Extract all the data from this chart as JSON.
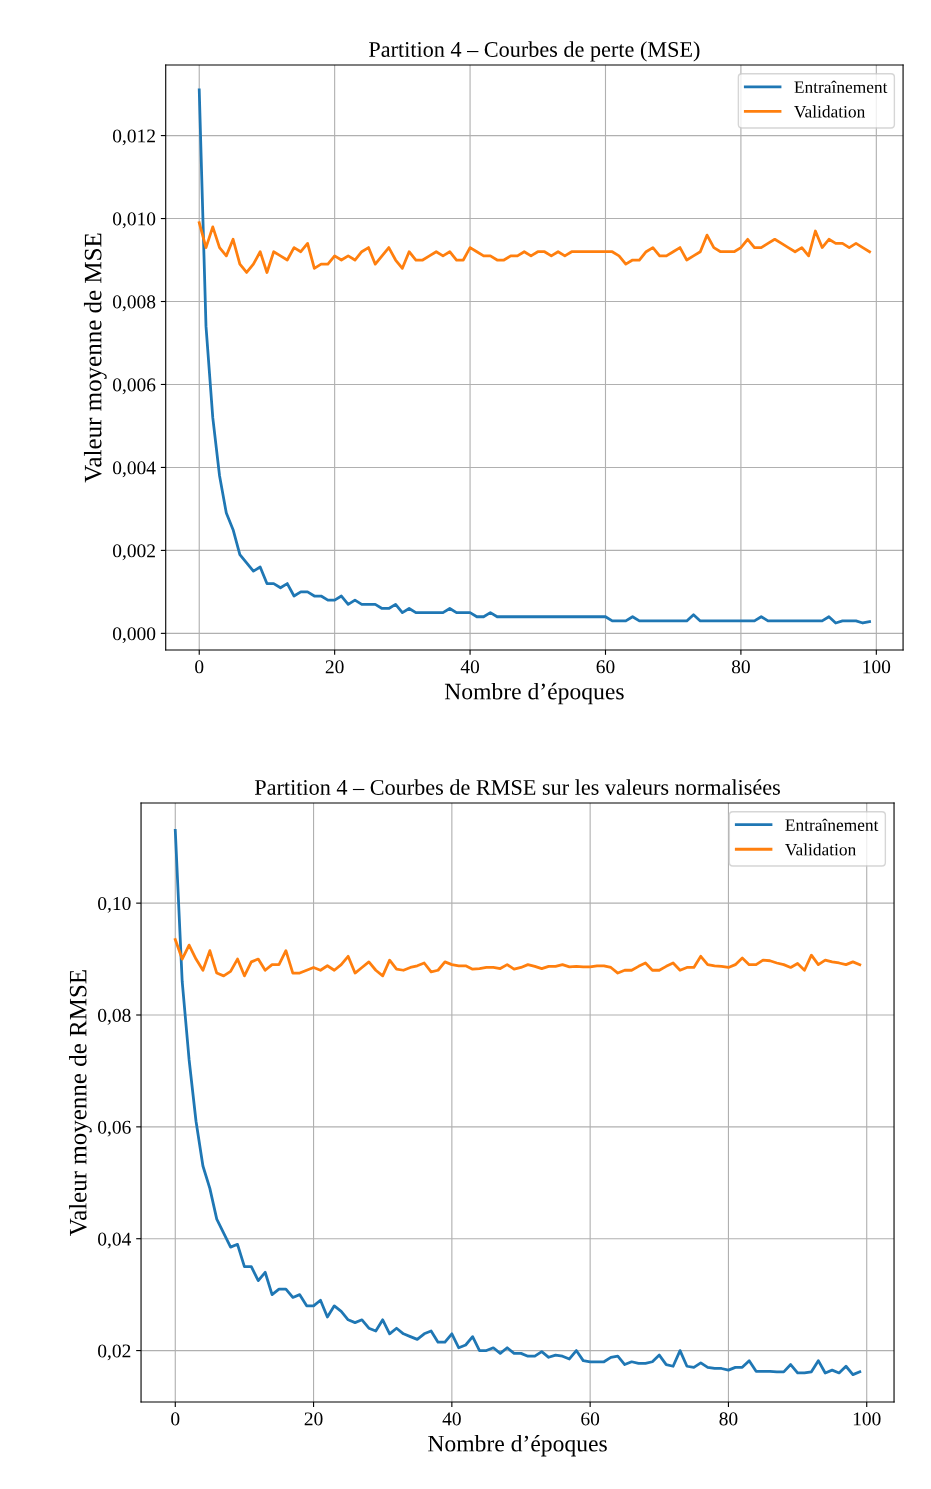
{
  "chart_data": [
    {
      "type": "line",
      "title": "Partition 4 – Courbes de perte (MSE)",
      "xlabel": "Nombre d’époques",
      "ylabel": "Valeur moyenne de MSE",
      "x": [
        0,
        1,
        2,
        3,
        4,
        5,
        6,
        7,
        8,
        9,
        10,
        11,
        12,
        13,
        14,
        15,
        16,
        17,
        18,
        19,
        20,
        21,
        22,
        23,
        24,
        25,
        26,
        27,
        28,
        29,
        30,
        31,
        32,
        33,
        34,
        35,
        36,
        37,
        38,
        39,
        40,
        41,
        42,
        43,
        44,
        45,
        46,
        47,
        48,
        49,
        50,
        51,
        52,
        53,
        54,
        55,
        56,
        57,
        58,
        59,
        60,
        61,
        62,
        63,
        64,
        65,
        66,
        67,
        68,
        69,
        70,
        71,
        72,
        73,
        74,
        75,
        76,
        77,
        78,
        79,
        80,
        81,
        82,
        83,
        84,
        85,
        86,
        87,
        88,
        89,
        90,
        91,
        92,
        93,
        94,
        95,
        96,
        97,
        98,
        99
      ],
      "series": [
        {
          "name": "Entraînement",
          "color": "#1f77b4",
          "values": [
            0.0131,
            0.0074,
            0.0052,
            0.0038,
            0.0029,
            0.0025,
            0.0019,
            0.0017,
            0.0015,
            0.0016,
            0.0012,
            0.0012,
            0.0011,
            0.0012,
            0.0009,
            0.001,
            0.001,
            0.0009,
            0.0009,
            0.0008,
            0.0008,
            0.0009,
            0.0007,
            0.0008,
            0.0007,
            0.0007,
            0.0007,
            0.0006,
            0.0006,
            0.0007,
            0.0005,
            0.0006,
            0.0005,
            0.0005,
            0.0005,
            0.0005,
            0.0005,
            0.0006,
            0.0005,
            0.0005,
            0.0005,
            0.0004,
            0.0004,
            0.0005,
            0.0004,
            0.0004,
            0.0004,
            0.0004,
            0.0004,
            0.0004,
            0.0004,
            0.0004,
            0.0004,
            0.0004,
            0.0004,
            0.0004,
            0.0004,
            0.0004,
            0.0004,
            0.0004,
            0.0004,
            0.0003,
            0.0003,
            0.0003,
            0.0004,
            0.0003,
            0.0003,
            0.0003,
            0.0003,
            0.0003,
            0.0003,
            0.0003,
            0.0003,
            0.00045,
            0.0003,
            0.0003,
            0.0003,
            0.0003,
            0.0003,
            0.0003,
            0.0003,
            0.0003,
            0.0003,
            0.0004,
            0.0003,
            0.0003,
            0.0003,
            0.0003,
            0.0003,
            0.0003,
            0.0003,
            0.0003,
            0.0003,
            0.0004,
            0.00025,
            0.0003,
            0.0003,
            0.0003,
            0.00025,
            0.00028
          ]
        },
        {
          "name": "Validation",
          "color": "#ff7f0e",
          "values": [
            0.0099,
            0.0093,
            0.0098,
            0.0093,
            0.0091,
            0.0095,
            0.0089,
            0.0087,
            0.0089,
            0.0092,
            0.0087,
            0.0092,
            0.0091,
            0.009,
            0.0093,
            0.0092,
            0.0094,
            0.0088,
            0.0089,
            0.0089,
            0.0091,
            0.009,
            0.0091,
            0.009,
            0.0092,
            0.0093,
            0.0089,
            0.0091,
            0.0093,
            0.009,
            0.0088,
            0.0092,
            0.009,
            0.009,
            0.0091,
            0.0092,
            0.0091,
            0.0092,
            0.009,
            0.009,
            0.0093,
            0.0092,
            0.0091,
            0.0091,
            0.009,
            0.009,
            0.0091,
            0.0091,
            0.0092,
            0.0091,
            0.0092,
            0.0092,
            0.0091,
            0.0092,
            0.0091,
            0.0092,
            0.0092,
            0.0092,
            0.0092,
            0.0092,
            0.0092,
            0.0092,
            0.0091,
            0.0089,
            0.009,
            0.009,
            0.0092,
            0.0093,
            0.0091,
            0.0091,
            0.0092,
            0.0093,
            0.009,
            0.0091,
            0.0092,
            0.0096,
            0.0093,
            0.0092,
            0.0092,
            0.0092,
            0.0093,
            0.0095,
            0.0093,
            0.0093,
            0.0094,
            0.0095,
            0.0094,
            0.0093,
            0.0092,
            0.0093,
            0.0091,
            0.0097,
            0.0093,
            0.0095,
            0.0094,
            0.0094,
            0.0093,
            0.0094,
            0.0093,
            0.0092
          ]
        }
      ],
      "xlim": [
        -4.95,
        103.95
      ],
      "xticks": [
        0,
        20,
        40,
        60,
        80,
        100
      ],
      "ylim": [
        -0.0004,
        0.0137
      ],
      "yticks": [
        {
          "value": 0,
          "label": "0,000"
        },
        {
          "value": 0.002,
          "label": "0,002"
        },
        {
          "value": 0.004,
          "label": "0,004"
        },
        {
          "value": 0.006,
          "label": "0,006"
        },
        {
          "value": 0.008,
          "label": "0,008"
        },
        {
          "value": 0.01,
          "label": "0,010"
        },
        {
          "value": 0.012,
          "label": "0,012"
        }
      ],
      "grid": true,
      "legend": "top right",
      "line_style": "solid"
    },
    {
      "type": "line",
      "title": "Partition 4 – Courbes de RMSE sur les valeurs normalisées",
      "xlabel": "Nombre d’époques",
      "ylabel": "Valeur moyenne de RMSE",
      "x": [
        0,
        1,
        2,
        3,
        4,
        5,
        6,
        7,
        8,
        9,
        10,
        11,
        12,
        13,
        14,
        15,
        16,
        17,
        18,
        19,
        20,
        21,
        22,
        23,
        24,
        25,
        26,
        27,
        28,
        29,
        30,
        31,
        32,
        33,
        34,
        35,
        36,
        37,
        38,
        39,
        40,
        41,
        42,
        43,
        44,
        45,
        46,
        47,
        48,
        49,
        50,
        51,
        52,
        53,
        54,
        55,
        56,
        57,
        58,
        59,
        60,
        61,
        62,
        63,
        64,
        65,
        66,
        67,
        68,
        69,
        70,
        71,
        72,
        73,
        74,
        75,
        76,
        77,
        78,
        79,
        80,
        81,
        82,
        83,
        84,
        85,
        86,
        87,
        88,
        89,
        90,
        91,
        92,
        93,
        94,
        95,
        96,
        97,
        98,
        99
      ],
      "series": [
        {
          "name": "Entraînement",
          "color": "#1f77b4",
          "values": [
            0.113,
            0.086,
            0.072,
            0.061,
            0.053,
            0.049,
            0.0435,
            0.041,
            0.0385,
            0.039,
            0.035,
            0.035,
            0.0325,
            0.034,
            0.03,
            0.031,
            0.031,
            0.0295,
            0.03,
            0.028,
            0.028,
            0.029,
            0.026,
            0.028,
            0.027,
            0.0255,
            0.025,
            0.0255,
            0.024,
            0.0235,
            0.0255,
            0.023,
            0.024,
            0.023,
            0.0225,
            0.022,
            0.023,
            0.0235,
            0.0215,
            0.0215,
            0.023,
            0.0205,
            0.021,
            0.0225,
            0.02,
            0.02,
            0.0205,
            0.0195,
            0.0205,
            0.0195,
            0.0195,
            0.019,
            0.019,
            0.0198,
            0.0188,
            0.0192,
            0.019,
            0.0185,
            0.02,
            0.0182,
            0.018,
            0.018,
            0.018,
            0.0188,
            0.019,
            0.0175,
            0.018,
            0.0177,
            0.0177,
            0.018,
            0.0192,
            0.0175,
            0.0172,
            0.02,
            0.0172,
            0.017,
            0.0178,
            0.017,
            0.0168,
            0.0168,
            0.0165,
            0.017,
            0.017,
            0.0182,
            0.0163,
            0.0163,
            0.0163,
            0.0162,
            0.0162,
            0.0175,
            0.016,
            0.016,
            0.0162,
            0.0182,
            0.016,
            0.0165,
            0.016,
            0.0172,
            0.0157,
            0.0162
          ]
        },
        {
          "name": "Validation",
          "color": "#ff7f0e",
          "values": [
            0.0935,
            0.09,
            0.0925,
            0.09,
            0.088,
            0.0915,
            0.0875,
            0.087,
            0.0878,
            0.09,
            0.087,
            0.0895,
            0.09,
            0.088,
            0.089,
            0.089,
            0.0915,
            0.0875,
            0.0875,
            0.088,
            0.0885,
            0.088,
            0.0888,
            0.088,
            0.089,
            0.0905,
            0.0875,
            0.0885,
            0.0895,
            0.088,
            0.087,
            0.0898,
            0.0882,
            0.088,
            0.0885,
            0.0888,
            0.0893,
            0.0877,
            0.088,
            0.0895,
            0.089,
            0.0888,
            0.0888,
            0.0882,
            0.0883,
            0.0885,
            0.0885,
            0.0883,
            0.089,
            0.0882,
            0.0885,
            0.089,
            0.0887,
            0.0883,
            0.0887,
            0.0887,
            0.089,
            0.0886,
            0.0887,
            0.0886,
            0.0886,
            0.0888,
            0.0888,
            0.0885,
            0.0875,
            0.088,
            0.088,
            0.0887,
            0.0893,
            0.088,
            0.088,
            0.0887,
            0.0893,
            0.088,
            0.0885,
            0.0885,
            0.0905,
            0.089,
            0.0888,
            0.0887,
            0.0885,
            0.089,
            0.0902,
            0.089,
            0.089,
            0.0898,
            0.0897,
            0.0893,
            0.089,
            0.0885,
            0.0892,
            0.088,
            0.0907,
            0.089,
            0.0898,
            0.0895,
            0.0893,
            0.089,
            0.0895,
            0.089
          ]
        }
      ],
      "xlim": [
        -4.95,
        103.95
      ],
      "xticks": [
        0,
        20,
        40,
        60,
        80,
        100
      ],
      "ylim": [
        0.0108,
        0.1179
      ],
      "yticks": [
        {
          "value": 0.02,
          "label": "0,02"
        },
        {
          "value": 0.04,
          "label": "0,04"
        },
        {
          "value": 0.06,
          "label": "0,06"
        },
        {
          "value": 0.08,
          "label": "0,08"
        },
        {
          "value": 0.1,
          "label": "0,10"
        }
      ],
      "grid": true,
      "legend": "top right",
      "line_style": "solid"
    }
  ]
}
